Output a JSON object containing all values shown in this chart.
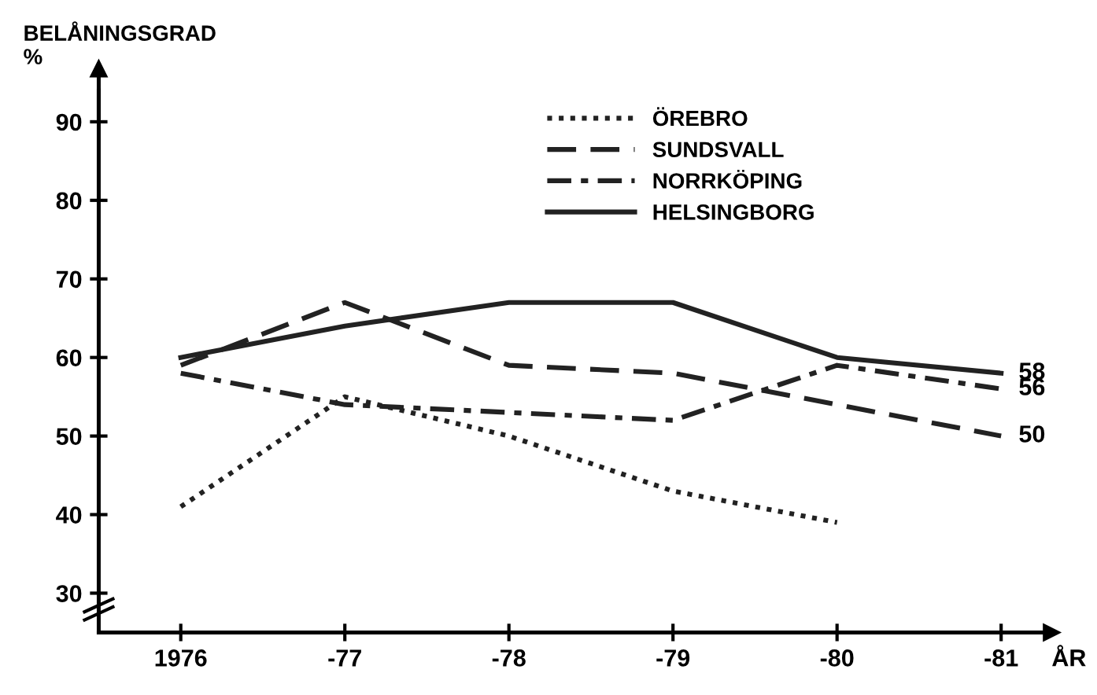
{
  "chart_data": {
    "type": "line",
    "ylabel": "BELÅNINGSGRAD\n%",
    "xlabel": "ÅR",
    "categories": [
      "1976",
      "-77",
      "-78",
      "-79",
      "-80",
      "-81"
    ],
    "ylim": [
      25,
      94
    ],
    "yticks": [
      30,
      40,
      50,
      60,
      70,
      80,
      90
    ],
    "grid": false,
    "legend": "top right",
    "series": [
      {
        "name": "ÖREBRO",
        "color": "#222222",
        "line_style": "dotted",
        "values": [
          41,
          55,
          50,
          43,
          39,
          null
        ]
      },
      {
        "name": "SUNDSVALL",
        "color": "#222222",
        "line_style": "dashed",
        "values": [
          59,
          67,
          59,
          58,
          54,
          50
        ]
      },
      {
        "name": "NORRKÖPING",
        "color": "#222222",
        "line_style": "dashdot",
        "values": [
          58,
          54,
          53,
          52,
          59,
          56
        ]
      },
      {
        "name": "HELSINGBORG",
        "color": "#222222",
        "line_style": "solid",
        "values": [
          60,
          64,
          67,
          67,
          60,
          58
        ]
      }
    ],
    "annotations": [
      {
        "text": "58",
        "x": "-81",
        "y": 58
      },
      {
        "text": "56",
        "x": "-81",
        "y": 56
      },
      {
        "text": "50",
        "x": "-81",
        "y": 50
      }
    ]
  }
}
